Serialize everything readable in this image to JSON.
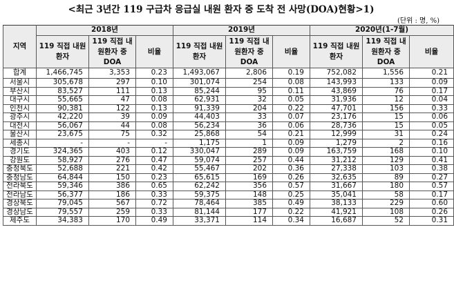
{
  "title": "<최근 3년간 119 구급차 응급실 내원 환자 중 도착 전 사망(DOA)현황>1)",
  "unit": "(단위 : 명, %)",
  "header": {
    "region_label": "지역",
    "years": [
      "2018년",
      "2019년",
      "2020년(1-7월)"
    ],
    "col_labels": [
      "119 직접 내원환자",
      "119 직접 내원환자 중 DOA",
      "비율"
    ]
  },
  "total": {
    "region": "합계",
    "values": [
      "1,466,745",
      "3,353",
      "0.23",
      "1,493,067",
      "2,806",
      "0.19",
      "752,082",
      "1,556",
      "0.21"
    ]
  },
  "rows": [
    {
      "region": "서울시",
      "values": [
        "305,678",
        "297",
        "0.10",
        "301,074",
        "254",
        "0.08",
        "143,993",
        "133",
        "0.09"
      ]
    },
    {
      "region": "부산시",
      "values": [
        "83,527",
        "111",
        "0.13",
        "85,244",
        "95",
        "0.11",
        "43,869",
        "76",
        "0.17"
      ]
    },
    {
      "region": "대구시",
      "values": [
        "55,665",
        "47",
        "0.08",
        "62,931",
        "32",
        "0.05",
        "31,936",
        "12",
        "0.04"
      ]
    },
    {
      "region": "인천시",
      "values": [
        "90,381",
        "122",
        "0.13",
        "91,339",
        "204",
        "0.22",
        "47,701",
        "156",
        "0.33"
      ]
    },
    {
      "region": "광주시",
      "values": [
        "42,220",
        "39",
        "0.09",
        "44,403",
        "33",
        "0.07",
        "23,176",
        "15",
        "0.06"
      ]
    },
    {
      "region": "대전시",
      "values": [
        "56,067",
        "44",
        "0.08",
        "56,234",
        "36",
        "0.06",
        "28,736",
        "15",
        "0.05"
      ]
    },
    {
      "region": "울산시",
      "values": [
        "23,675",
        "75",
        "0.32",
        "25,868",
        "54",
        "0.21",
        "12,999",
        "31",
        "0.24"
      ]
    },
    {
      "region": "세종시",
      "values": [
        "-",
        "-",
        "-",
        "1,175",
        "1",
        "0.09",
        "1,279",
        "2",
        "0.16"
      ]
    },
    {
      "region": "경기도",
      "values": [
        "324,365",
        "403",
        "0.12",
        "330,047",
        "289",
        "0.09",
        "163,759",
        "168",
        "0.10"
      ]
    },
    {
      "region": "강원도",
      "values": [
        "58,927",
        "276",
        "0.47",
        "59,074",
        "257",
        "0.44",
        "31,212",
        "129",
        "0.41"
      ]
    },
    {
      "region": "충청북도",
      "values": [
        "52,688",
        "221",
        "0.42",
        "55,467",
        "202",
        "0.36",
        "27,338",
        "103",
        "0.38"
      ]
    },
    {
      "region": "충청남도",
      "values": [
        "64,844",
        "150",
        "0.23",
        "65,615",
        "169",
        "0.26",
        "32,635",
        "89",
        "0.27"
      ]
    },
    {
      "region": "전라북도",
      "values": [
        "59,346",
        "386",
        "0.65",
        "62,242",
        "356",
        "0.57",
        "31,667",
        "180",
        "0.57"
      ]
    },
    {
      "region": "전라남도",
      "values": [
        "56,377",
        "186",
        "0.33",
        "59,375",
        "148",
        "0.25",
        "35,041",
        "58",
        "0.17"
      ]
    },
    {
      "region": "경상북도",
      "values": [
        "79,045",
        "567",
        "0.72",
        "78,464",
        "385",
        "0.49",
        "38,133",
        "229",
        "0.60"
      ]
    },
    {
      "region": "경상남도",
      "values": [
        "79,557",
        "259",
        "0.33",
        "81,144",
        "177",
        "0.22",
        "41,921",
        "108",
        "0.26"
      ]
    },
    {
      "region": "제주도",
      "values": [
        "34,383",
        "170",
        "0.49",
        "33,371",
        "114",
        "0.34",
        "16,687",
        "52",
        "0.31"
      ]
    }
  ]
}
